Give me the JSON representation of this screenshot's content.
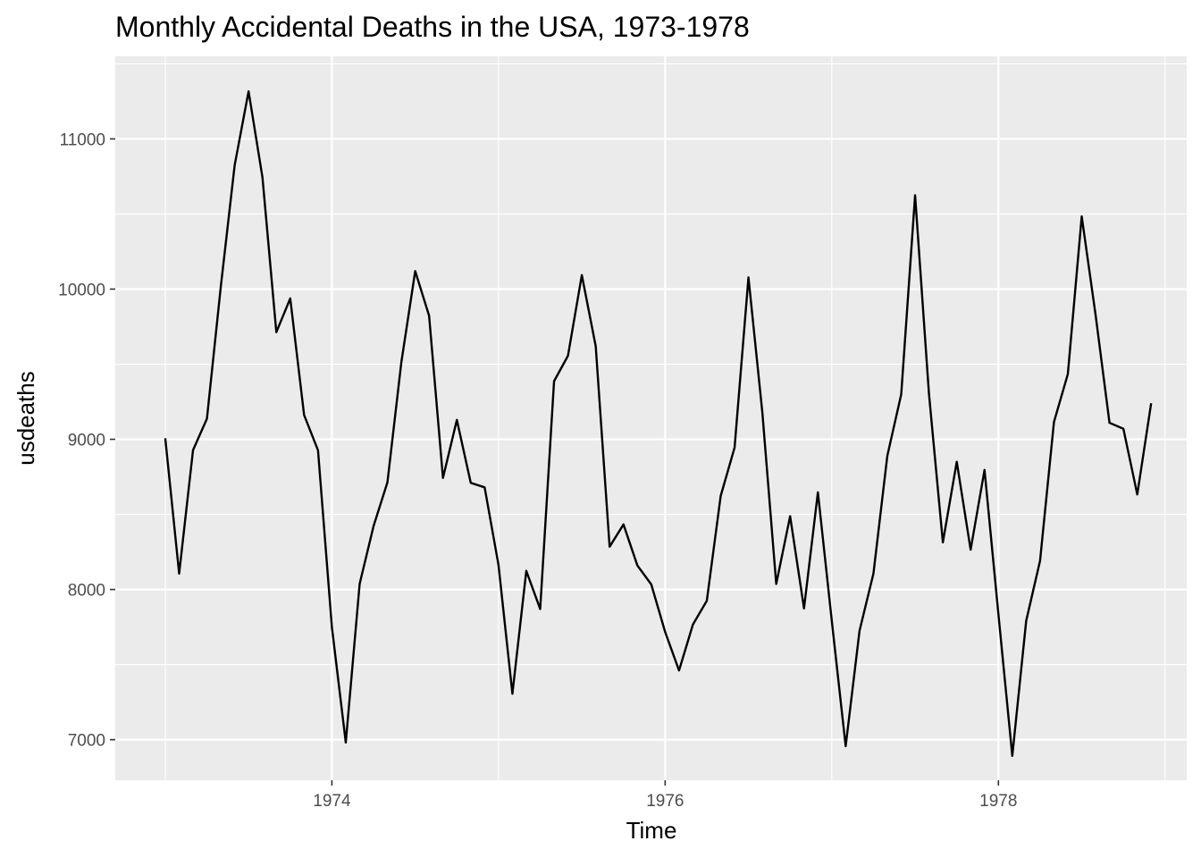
{
  "chart_data": {
    "type": "line",
    "title": "Monthly Accidental Deaths in the USA, 1973-1978",
    "xlabel": "Time",
    "ylabel": "usdeaths",
    "xlim": [
      1972.7,
      1979.13
    ],
    "ylim": [
      6730,
      11550
    ],
    "x_ticks": [
      1974,
      1976,
      1978
    ],
    "x_tick_labels": [
      "1974",
      "1976",
      "1978"
    ],
    "x_minor_ticks": [
      1973,
      1975,
      1977,
      1979
    ],
    "y_ticks": [
      7000,
      8000,
      9000,
      10000,
      11000
    ],
    "y_tick_labels": [
      "7000",
      "8000",
      "9000",
      "10000",
      "11000"
    ],
    "y_minor_ticks": [
      7500,
      8500,
      9500,
      10500,
      11500
    ],
    "grid": true,
    "legend": "none",
    "colors": {
      "panel": "#ebebeb",
      "grid": "#ffffff",
      "line": "#000000",
      "tick_text": "#4d4d4d",
      "tick_mark": "#333333"
    },
    "series": [
      {
        "start": 1973,
        "frequency": 12,
        "values": [
          9007,
          8106,
          8928,
          9137,
          10017,
          10826,
          11317,
          10744,
          9713,
          9938,
          9161,
          8927,
          7750,
          6981,
          8038,
          8422,
          8714,
          9512,
          10120,
          9823,
          8743,
          9129,
          8710,
          8680,
          8162,
          7306,
          8124,
          7870,
          9387,
          9556,
          10093,
          9620,
          8285,
          8433,
          8160,
          8034,
          7717,
          7461,
          7767,
          7925,
          8623,
          8945,
          10078,
          9179,
          8037,
          8488,
          7874,
          8647,
          7792,
          6957,
          7726,
          8106,
          8890,
          9299,
          10625,
          9302,
          8314,
          8850,
          8265,
          8796,
          7836,
          6892,
          7791,
          8192,
          9115,
          9434,
          10484,
          9827,
          9110,
          9070,
          8633,
          9240
        ]
      }
    ]
  }
}
